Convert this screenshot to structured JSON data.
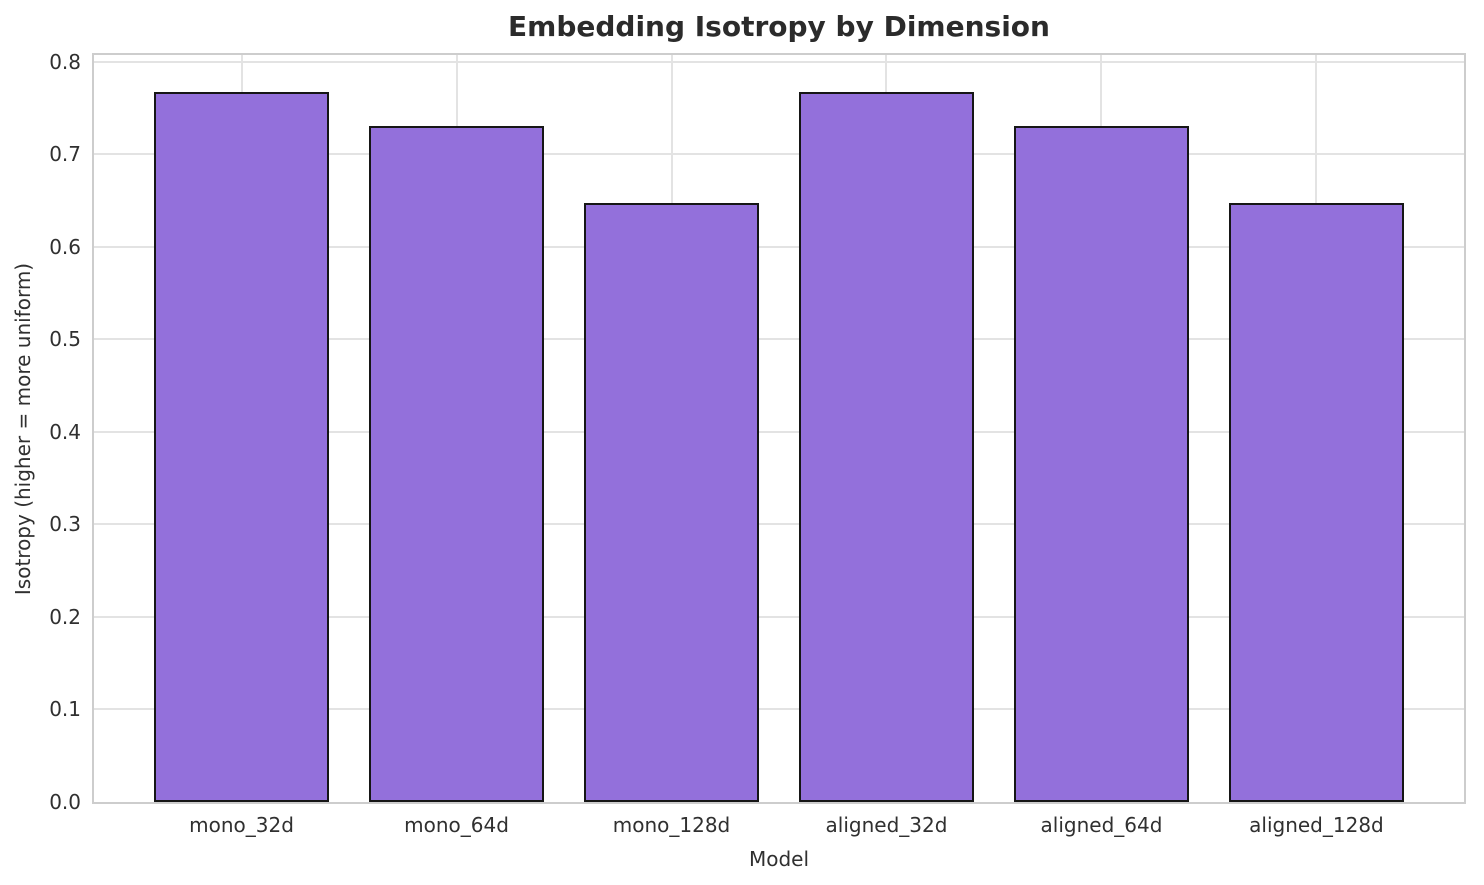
{
  "chart_data": {
    "type": "bar",
    "title": "Embedding Isotropy by Dimension",
    "xlabel": "Model",
    "ylabel": "Isotropy (higher = more uniform)",
    "categories": [
      "mono_32d",
      "mono_64d",
      "mono_128d",
      "aligned_32d",
      "aligned_64d",
      "aligned_128d"
    ],
    "values": [
      0.768,
      0.731,
      0.647,
      0.768,
      0.731,
      0.647
    ],
    "ylim": [
      0,
      0.8075
    ],
    "ytick_labels": [
      "0.0",
      "0.1",
      "0.2",
      "0.3",
      "0.4",
      "0.5",
      "0.6",
      "0.7",
      "0.8"
    ],
    "grid": true,
    "legend_position": "none",
    "colors": {
      "bar_fill": "#9370DB",
      "bar_edge": "#161616",
      "grid_line": "#e3e3e3",
      "spine": "#cdcdcd",
      "text": "#2b2b2b"
    }
  }
}
